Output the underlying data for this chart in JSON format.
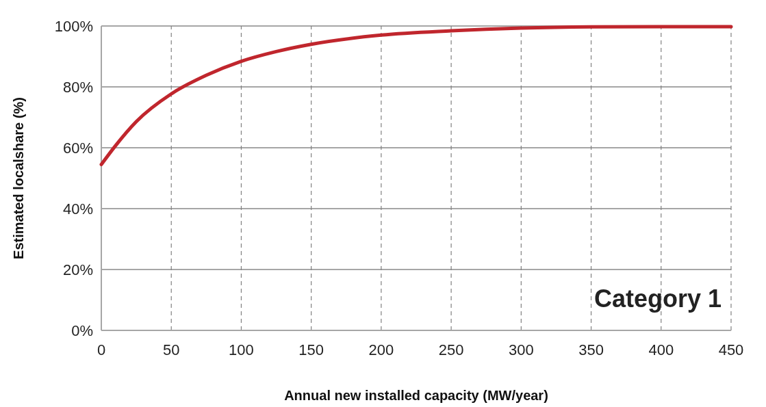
{
  "chart_data": {
    "type": "line",
    "xlabel": "Annual new installed capacity (MW/year)",
    "ylabel": "Estimated localshare (%)",
    "x": [
      0,
      10,
      25,
      50,
      75,
      100,
      125,
      150,
      200,
      250,
      300,
      350,
      400,
      450
    ],
    "series": [
      {
        "color": "#c0262d",
        "values": [
          54.5,
          60.6,
          68.6,
          77.7,
          83.8,
          88.4,
          91.6,
          94,
          97,
          98.4,
          99.3,
          99.7,
          99.8,
          99.8
        ]
      }
    ],
    "xlim": [
      0,
      450
    ],
    "xticks": [
      0,
      50,
      100,
      150,
      200,
      250,
      300,
      350,
      400,
      450
    ],
    "ylim": [
      0,
      100
    ],
    "yticks": [
      {
        "value": 0,
        "label": "0%"
      },
      {
        "value": 20,
        "label": "20%"
      },
      {
        "value": 40,
        "label": "40%"
      },
      {
        "value": 60,
        "label": "60%"
      },
      {
        "value": 80,
        "label": "80%"
      },
      {
        "value": 100,
        "label": "100%"
      }
    ],
    "grid": true,
    "marker": "none",
    "line_style": "solid",
    "annotations": [
      "Category 1"
    ]
  }
}
